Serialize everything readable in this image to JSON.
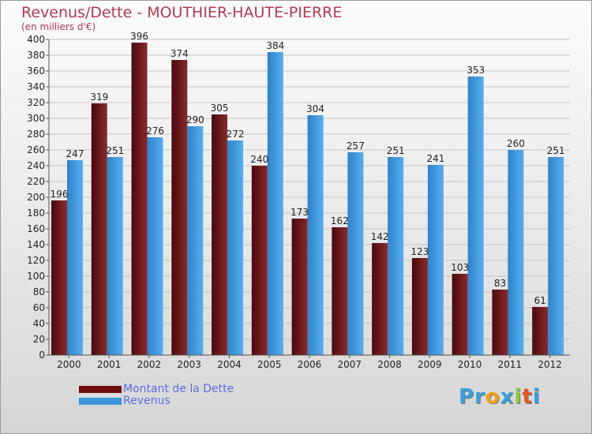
{
  "title": "Revenus/Dette - MOUTHIER-HAUTE-PIERRE",
  "subtitle": "(en milliers d'€)",
  "logo": {
    "text": "Proxiti",
    "colors": [
      "#3aa0d9",
      "#3aa0d9",
      "#f0a11a",
      "#3aa0d9",
      "#8fc640",
      "#e25522",
      "#3aa0d9"
    ]
  },
  "legend": [
    {
      "label": "Montant de la Dette",
      "color": "#6e0d10"
    },
    {
      "label": "Revenus",
      "color": "#3b95dd"
    }
  ],
  "chart_data": {
    "type": "bar",
    "categories": [
      "2000",
      "2001",
      "2002",
      "2003",
      "2004",
      "2005",
      "2006",
      "2007",
      "2008",
      "2009",
      "2010",
      "2011",
      "2012"
    ],
    "series": [
      {
        "name": "Montant de la Dette",
        "color": "#7a1a1e",
        "values": [
          196,
          319,
          396,
          374,
          305,
          240,
          173,
          162,
          142,
          123,
          103,
          83,
          61
        ]
      },
      {
        "name": "Revenus",
        "color": "#4aa3e6",
        "values": [
          247,
          251,
          276,
          290,
          272,
          384,
          304,
          257,
          251,
          241,
          353,
          260,
          251
        ]
      }
    ],
    "ylim": [
      0,
      400
    ],
    "ytick_step": 20,
    "grid": true
  }
}
